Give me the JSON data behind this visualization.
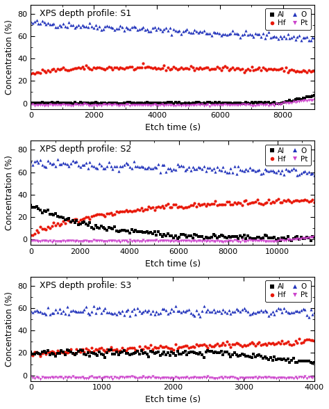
{
  "panels": [
    {
      "title": "XPS depth profile: S1",
      "xlabel": "Etch time (s)",
      "ylabel": "Concentration (%)",
      "xlim": [
        0,
        9000
      ],
      "ylim": [
        -5,
        88
      ],
      "yticks": [
        0,
        20,
        40,
        60,
        80
      ],
      "xticks": [
        0,
        2000,
        4000,
        6000,
        8000
      ],
      "series": {
        "Al": {
          "color": "#000000",
          "marker": "s",
          "profile": "al_s1"
        },
        "Hf": {
          "color": "#e8190a",
          "marker": "o",
          "profile": "hf_s1"
        },
        "O": {
          "color": "#2233bb",
          "marker": "^",
          "profile": "o_s1"
        },
        "Pt": {
          "color": "#cc44cc",
          "marker": "v",
          "profile": "pt_s1"
        }
      }
    },
    {
      "title": "XPS depth profile: S2",
      "xlabel": "Etch time (s)",
      "ylabel": "Concentration (%)",
      "xlim": [
        0,
        11500
      ],
      "ylim": [
        -5,
        88
      ],
      "yticks": [
        0,
        20,
        40,
        60,
        80
      ],
      "xticks": [
        0,
        2000,
        4000,
        6000,
        8000,
        10000
      ],
      "series": {
        "Al": {
          "color": "#000000",
          "marker": "s",
          "profile": "al_s2"
        },
        "Hf": {
          "color": "#e8190a",
          "marker": "o",
          "profile": "hf_s2"
        },
        "O": {
          "color": "#2233bb",
          "marker": "^",
          "profile": "o_s2"
        },
        "Pt": {
          "color": "#cc44cc",
          "marker": "v",
          "profile": "pt_s2"
        }
      }
    },
    {
      "title": "XPS depth profile: S3",
      "xlabel": "Etch time (s)",
      "ylabel": "Concentration (%)",
      "xlim": [
        0,
        4000
      ],
      "ylim": [
        -5,
        88
      ],
      "yticks": [
        0,
        20,
        40,
        60,
        80
      ],
      "xticks": [
        0,
        1000,
        2000,
        3000,
        4000
      ],
      "series": {
        "Al": {
          "color": "#000000",
          "marker": "s",
          "profile": "al_s3"
        },
        "Hf": {
          "color": "#e8190a",
          "marker": "o",
          "profile": "hf_s3"
        },
        "O": {
          "color": "#2233bb",
          "marker": "^",
          "profile": "o_s3"
        },
        "Pt": {
          "color": "#cc44cc",
          "marker": "v",
          "profile": "pt_s3"
        }
      }
    }
  ],
  "legend_row1": [
    [
      "Al",
      "#000000",
      "s"
    ],
    [
      "Hf",
      "#e8190a",
      "o"
    ]
  ],
  "legend_row2": [
    [
      "O",
      "#2233bb",
      "^"
    ],
    [
      "Pt",
      "#cc44cc",
      "v"
    ]
  ],
  "draw_order": [
    "O",
    "Hf",
    "Al",
    "Pt"
  ]
}
